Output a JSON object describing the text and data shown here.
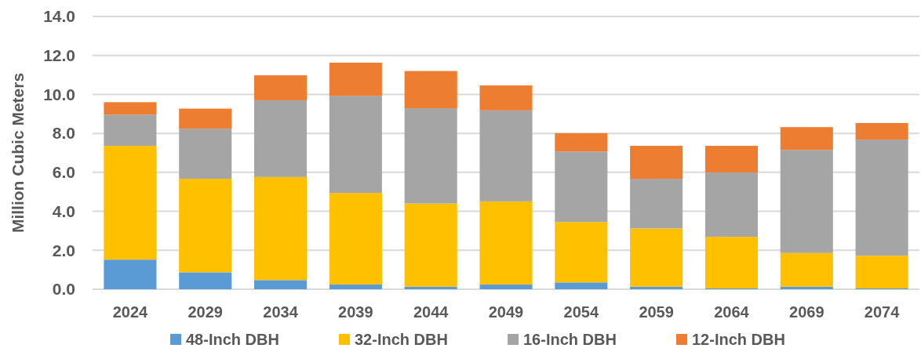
{
  "chart_data": {
    "type": "bar",
    "stacked": true,
    "ylabel": "Million Cubic Meters",
    "categories": [
      "2024",
      "2029",
      "2034",
      "2039",
      "2044",
      "2049",
      "2054",
      "2059",
      "2064",
      "2069",
      "2074"
    ],
    "series": [
      {
        "name": "48-Inch DBH",
        "color": "#5b9bd5",
        "values": [
          1.52,
          0.87,
          0.47,
          0.24,
          0.13,
          0.24,
          0.35,
          0.13,
          0.04,
          0.13,
          0.04
        ]
      },
      {
        "name": "32-Inch DBH",
        "color": "#ffc000",
        "values": [
          5.84,
          4.8,
          5.29,
          4.7,
          4.27,
          4.27,
          3.1,
          2.99,
          2.65,
          1.73,
          1.68
        ]
      },
      {
        "name": "16-Inch DBH",
        "color": "#a5a5a5",
        "values": [
          1.6,
          2.57,
          3.94,
          4.99,
          4.89,
          4.67,
          3.62,
          2.55,
          3.3,
          5.29,
          5.96
        ]
      },
      {
        "name": "12-Inch DBH",
        "color": "#ed7d31",
        "values": [
          0.64,
          1.03,
          1.28,
          1.7,
          1.91,
          1.28,
          0.94,
          1.69,
          1.37,
          1.17,
          0.85
        ]
      }
    ],
    "ylim": [
      0,
      14
    ],
    "yticks": [
      {
        "value": 0,
        "label": "0.0"
      },
      {
        "value": 2,
        "label": "2.0"
      },
      {
        "value": 4,
        "label": "4.0"
      },
      {
        "value": 6,
        "label": "6.0"
      },
      {
        "value": 8,
        "label": "8.0"
      },
      {
        "value": 10,
        "label": "10.0"
      },
      {
        "value": 12,
        "label": "12.0"
      },
      {
        "value": 14,
        "label": "14.0"
      }
    ],
    "grid": "y",
    "legend": "bottom"
  }
}
